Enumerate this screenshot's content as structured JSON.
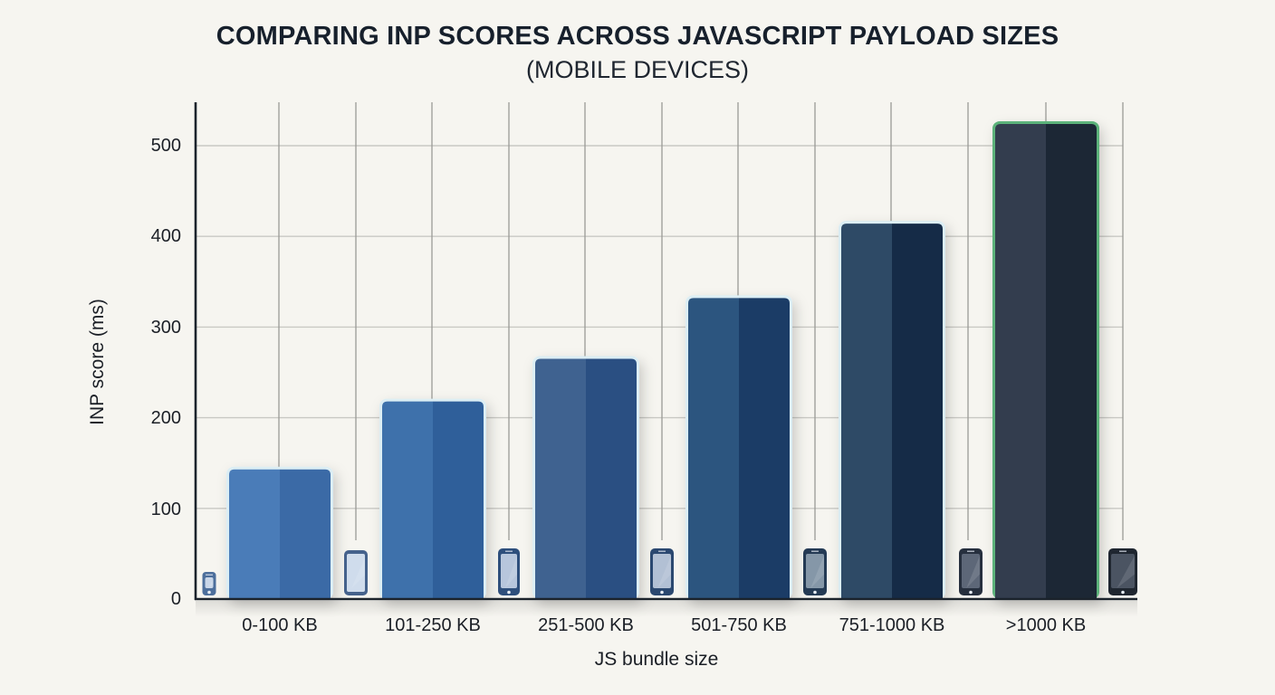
{
  "chart_data": {
    "type": "bar",
    "title": "COMPARING INP SCORES ACROSS JAVASCRIPT PAYLOAD SIZES",
    "subtitle": "(MOBILE DEVICES)",
    "xlabel": "JS bundle size",
    "ylabel": "INP score (ms)",
    "categories": [
      "0-100 KB",
      "101-250 KB",
      "251-500 KB",
      "501-750 KB",
      "751-1000 KB",
      ">1000 KB"
    ],
    "values": [
      143,
      218,
      265,
      332,
      414,
      524
    ],
    "ylim": [
      0,
      540
    ],
    "yticks": [
      0,
      100,
      200,
      300,
      400,
      500
    ],
    "grid": true,
    "legend": null,
    "bar_colors": [
      [
        "#4a7cb8",
        "#3b6aa6"
      ],
      [
        "#3e71ab",
        "#2f5f9a"
      ],
      [
        "#3f6290",
        "#2a4f82"
      ],
      [
        "#2c557f",
        "#1b3c66"
      ],
      [
        "#2e4a66",
        "#152b47"
      ],
      [
        "#333d4e",
        "#1c2735"
      ]
    ],
    "highlight": {
      "category": ">1000 KB",
      "outline_color": "#5cb27a"
    },
    "decorations": {
      "phone-icons": 7,
      "green-accent-line": true
    }
  },
  "axis": {
    "ytick_labels": [
      "500",
      "400",
      "300",
      "200",
      "100",
      "0"
    ]
  }
}
